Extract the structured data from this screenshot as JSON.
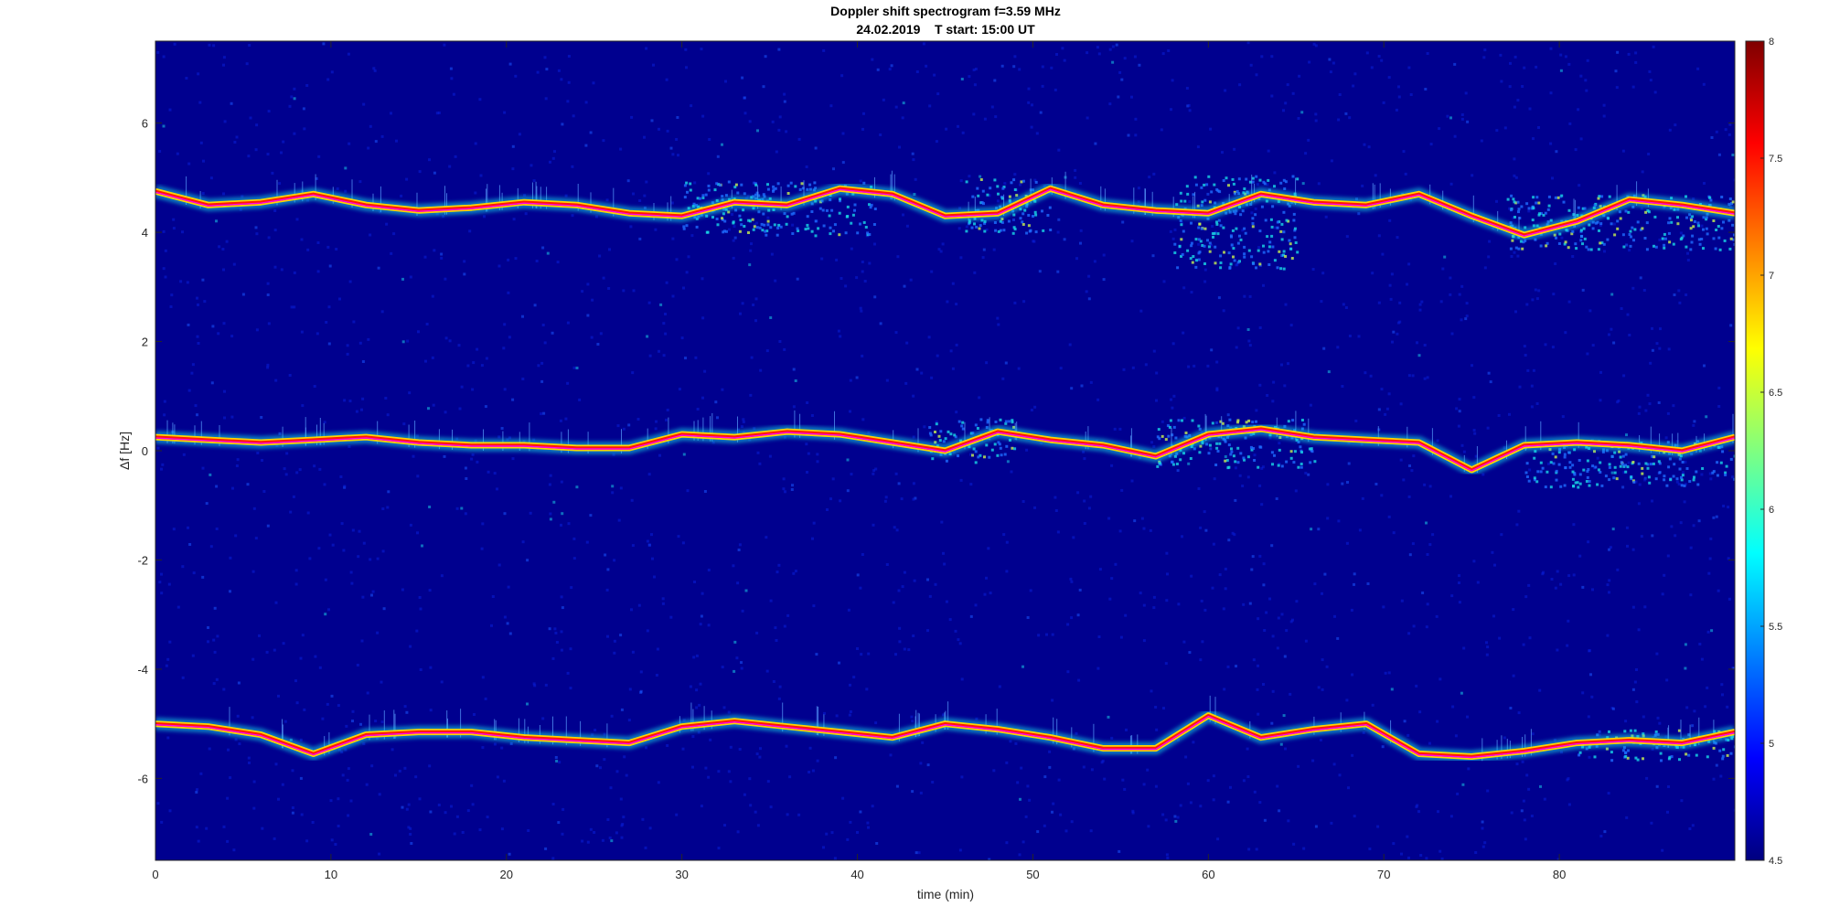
{
  "chart_data": {
    "type": "heatmap",
    "title": "Doppler shift spectrogram f=3.59 MHz",
    "subtitle": "24.02.2019    T start: 15:00 UT",
    "xlabel": "time (min)",
    "ylabel": "Δf [Hz]",
    "xlim": [
      0,
      90
    ],
    "ylim": [
      -7.5,
      7.5
    ],
    "xticks": [
      0,
      10,
      20,
      30,
      40,
      50,
      60,
      70,
      80
    ],
    "yticks": [
      -6,
      -4,
      -2,
      0,
      2,
      4,
      6
    ],
    "colorbar": {
      "range": [
        4.5,
        8
      ],
      "ticks": [
        4.5,
        5,
        5.5,
        6,
        6.5,
        7,
        7.5,
        8
      ],
      "colormap": "jet"
    },
    "colors": {
      "background": "#00008f",
      "trace_core": "#ff1a00",
      "trace_mid": "#ffd400",
      "trace_halo": "#19d7e6",
      "fit_line": "#ff00ff"
    },
    "series": [
      {
        "x": [
          0,
          3,
          6,
          9,
          12,
          15,
          18,
          21,
          24,
          27,
          30,
          33,
          36,
          39,
          42,
          45,
          48,
          51,
          54,
          57,
          60,
          63,
          66,
          69,
          72,
          75,
          78,
          81,
          84,
          87,
          90
        ],
        "y": [
          4.75,
          4.5,
          4.55,
          4.7,
          4.5,
          4.4,
          4.45,
          4.55,
          4.5,
          4.35,
          4.3,
          4.55,
          4.5,
          4.8,
          4.7,
          4.3,
          4.35,
          4.8,
          4.5,
          4.4,
          4.35,
          4.7,
          4.55,
          4.5,
          4.7,
          4.3,
          3.95,
          4.2,
          4.6,
          4.5,
          4.35
        ]
      },
      {
        "x": [
          0,
          3,
          6,
          9,
          12,
          15,
          18,
          21,
          24,
          27,
          30,
          33,
          36,
          39,
          42,
          45,
          48,
          51,
          54,
          57,
          60,
          63,
          66,
          69,
          72,
          75,
          78,
          81,
          84,
          87,
          90
        ],
        "y": [
          0.25,
          0.2,
          0.15,
          0.2,
          0.25,
          0.15,
          0.1,
          0.1,
          0.05,
          0.05,
          0.3,
          0.25,
          0.35,
          0.3,
          0.15,
          0.0,
          0.35,
          0.2,
          0.1,
          -0.1,
          0.3,
          0.4,
          0.25,
          0.2,
          0.15,
          -0.35,
          0.1,
          0.15,
          0.1,
          0.0,
          0.25
        ]
      },
      {
        "x": [
          0,
          3,
          6,
          9,
          12,
          15,
          18,
          21,
          24,
          27,
          30,
          33,
          36,
          39,
          42,
          45,
          48,
          51,
          54,
          57,
          60,
          63,
          66,
          69,
          72,
          75,
          78,
          81,
          84,
          87,
          90
        ],
        "y": [
          -5.0,
          -5.05,
          -5.2,
          -5.55,
          -5.2,
          -5.15,
          -5.15,
          -5.25,
          -5.3,
          -5.35,
          -5.05,
          -4.95,
          -5.05,
          -5.15,
          -5.25,
          -5.0,
          -5.1,
          -5.25,
          -5.45,
          -5.45,
          -4.85,
          -5.25,
          -5.1,
          -5.0,
          -5.55,
          -5.6,
          -5.5,
          -5.35,
          -5.3,
          -5.35,
          -5.15
        ]
      }
    ],
    "scatter_clusters": [
      {
        "x": [
          30,
          41
        ],
        "y": [
          3.95,
          4.95
        ]
      },
      {
        "x": [
          46,
          51
        ],
        "y": [
          4.0,
          5.0
        ]
      },
      {
        "x": [
          58,
          65
        ],
        "y": [
          3.35,
          5.05
        ]
      },
      {
        "x": [
          77,
          90
        ],
        "y": [
          3.7,
          4.7
        ]
      },
      {
        "x": [
          44,
          49
        ],
        "y": [
          -0.2,
          0.6
        ]
      },
      {
        "x": [
          57,
          66
        ],
        "y": [
          -0.3,
          0.6
        ]
      },
      {
        "x": [
          78,
          90
        ],
        "y": [
          -0.65,
          0.2
        ]
      },
      {
        "x": [
          81,
          90
        ],
        "y": [
          -5.65,
          -5.1
        ]
      }
    ]
  }
}
